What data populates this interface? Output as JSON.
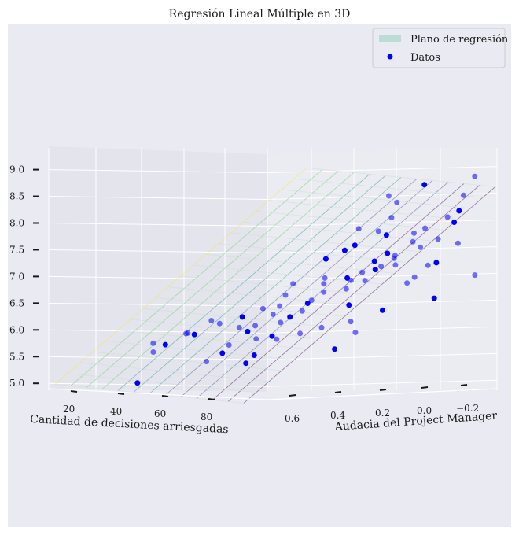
{
  "chart_data": {
    "type": "scatter",
    "title": "Regresión Lineal Múltiple en 3D",
    "xlabel": "Cantidad de decisiones arriesgadas",
    "ylabel": "Audacia del Project Manager",
    "zlabel": "",
    "x_ticks": [
      "20",
      "40",
      "60",
      "80"
    ],
    "y_ticks": [
      "0.6",
      "0.4",
      "0.2",
      "0.0",
      "−0.2"
    ],
    "z_ticks": [
      "5.0",
      "5.5",
      "6.0",
      "6.5",
      "7.0",
      "7.5",
      "8.0",
      "8.5",
      "9.0"
    ],
    "xlim": [
      10,
      100
    ],
    "ylim": [
      -0.3,
      0.7
    ],
    "zlim": [
      4.9,
      9.2
    ],
    "legend": {
      "position": "top-right",
      "entries": [
        {
          "label": "Plano de regresión",
          "color": "#bddcd6",
          "marker": "patch"
        },
        {
          "label": "Datos",
          "color": "#0000ff",
          "marker": "dot"
        }
      ]
    },
    "plane": {
      "intercept": 4.3,
      "coef_x": 0.045,
      "coef_y": 0.5,
      "colormap": "viridis"
    },
    "points": [
      [
        28,
        0.53,
        5.1
      ],
      [
        35,
        0.55,
        5.68
      ],
      [
        37,
        0.58,
        5.85
      ],
      [
        40,
        0.56,
        5.82
      ],
      [
        44,
        0.5,
        6.03
      ],
      [
        44,
        0.51,
        6.02
      ],
      [
        45,
        0.48,
        6.0
      ],
      [
        52,
        0.52,
        5.5
      ],
      [
        52,
        0.45,
        6.2
      ],
      [
        55,
        0.48,
        5.65
      ],
      [
        56,
        0.46,
        5.8
      ],
      [
        57,
        0.42,
        6.12
      ],
      [
        58,
        0.4,
        5.45
      ],
      [
        59,
        0.36,
        5.9
      ],
      [
        60,
        0.38,
        6.15
      ],
      [
        61,
        0.4,
        5.6
      ],
      [
        61,
        0.3,
        6.35
      ],
      [
        62,
        0.28,
        6.5
      ],
      [
        64,
        0.35,
        5.95
      ],
      [
        65,
        0.32,
        6.2
      ],
      [
        66,
        0.22,
        6.4
      ],
      [
        67,
        0.3,
        6.3
      ],
      [
        68,
        0.2,
        6.6
      ],
      [
        69,
        0.15,
        6.9
      ],
      [
        70,
        0.25,
        6.55
      ],
      [
        71,
        0.18,
        6.75
      ],
      [
        72,
        0.05,
        6.95
      ],
      [
        74,
        0.1,
        7.0
      ],
      [
        75,
        0.12,
        6.8
      ],
      [
        76,
        0.05,
        7.1
      ],
      [
        77,
        0.0,
        7.3
      ],
      [
        78,
        -0.02,
        7.2
      ],
      [
        79,
        0.08,
        6.95
      ],
      [
        80,
        0.04,
        7.15
      ],
      [
        81,
        -0.05,
        7.4
      ],
      [
        82,
        -0.03,
        7.35
      ],
      [
        83,
        0.02,
        7.45
      ],
      [
        84,
        -0.1,
        7.65
      ],
      [
        85,
        0.0,
        8.4
      ],
      [
        86,
        0.07,
        7.8
      ],
      [
        87,
        -0.12,
        7.9
      ],
      [
        88,
        -0.08,
        7.55
      ],
      [
        89,
        -0.15,
        7.25
      ],
      [
        90,
        -0.02,
        7.0
      ],
      [
        91,
        -0.18,
        8.1
      ],
      [
        92,
        -0.2,
        8.0
      ],
      [
        93,
        -0.1,
        7.7
      ],
      [
        94,
        -0.22,
        8.5
      ],
      [
        95,
        -0.05,
        6.6
      ],
      [
        96,
        -0.25,
        8.85
      ],
      [
        66,
        0.1,
        7.0
      ],
      [
        70,
        0.0,
        7.6
      ],
      [
        73,
        -0.08,
        7.85
      ],
      [
        75,
        -0.12,
        8.1
      ],
      [
        78,
        0.15,
        6.5
      ],
      [
        82,
        0.2,
        6.2
      ],
      [
        85,
        0.22,
        6.0
      ],
      [
        63,
        0.05,
        7.35
      ],
      [
        68,
        -0.05,
        7.9
      ],
      [
        72,
        -0.15,
        8.5
      ],
      [
        80,
        -0.22,
        8.7
      ],
      [
        58,
        0.15,
        6.9
      ],
      [
        54,
        0.25,
        6.45
      ],
      [
        50,
        0.3,
        6.3
      ],
      [
        86,
        -0.15,
        7.2
      ],
      [
        90,
        -0.25,
        7.6
      ],
      [
        62,
        0.45,
        6.05
      ],
      [
        47,
        0.42,
        6.25
      ],
      [
        77,
        0.28,
        6.1
      ],
      [
        83,
        0.3,
        5.7
      ],
      [
        74,
        0.35,
        6.0
      ],
      [
        69,
        0.4,
        5.9
      ],
      [
        88,
        0.12,
        6.4
      ],
      [
        92,
        0.05,
        6.9
      ],
      [
        94,
        -0.28,
        7.0
      ],
      [
        65,
        -0.02,
        7.5
      ],
      [
        71,
        -0.2,
        7.2
      ],
      [
        79,
        -0.18,
        7.8
      ],
      [
        87,
        -0.3,
        8.2
      ],
      [
        60,
        0.22,
        6.7
      ]
    ]
  }
}
